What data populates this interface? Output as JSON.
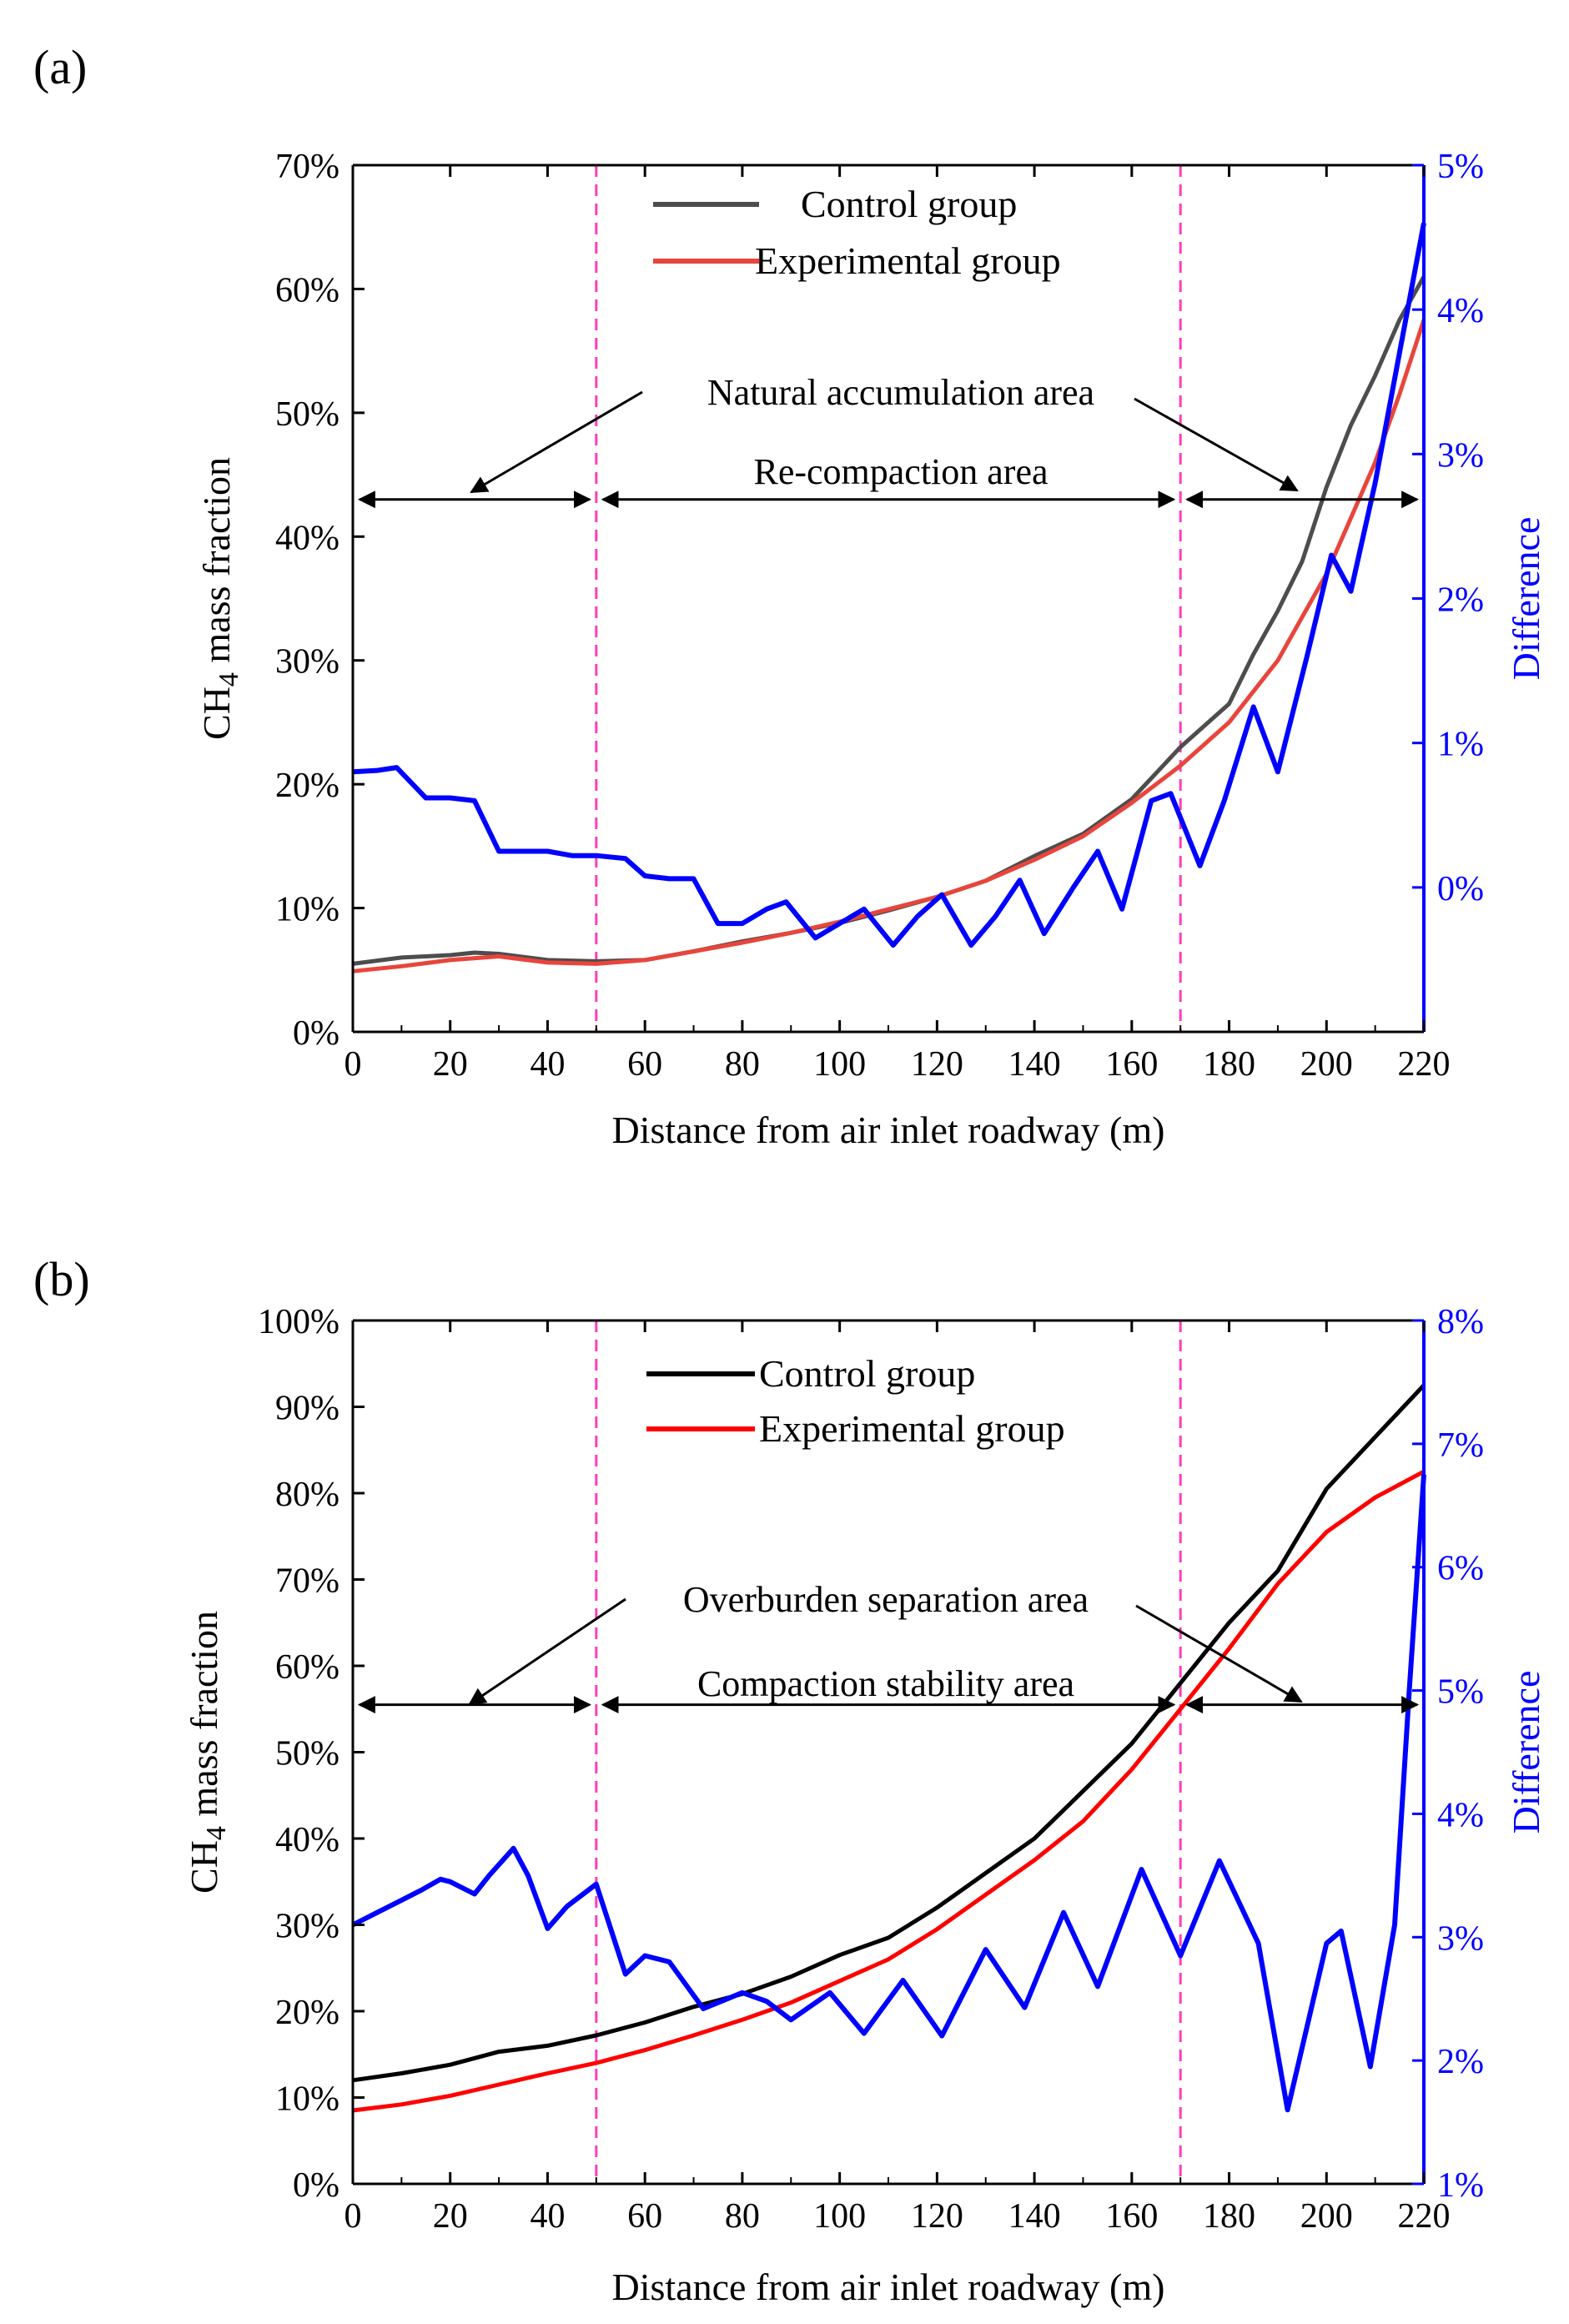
{
  "chart_data": [
    {
      "type": "line",
      "panel_label": "(a)",
      "xlabel": "Distance from air inlet roadway (m)",
      "ylabel_left_main": "CH",
      "ylabel_left_sub": "4",
      "ylabel_left_tail": " mass fraction",
      "ylabel_right": "Difference",
      "xlim": [
        0,
        220
      ],
      "ylim_left": [
        0,
        70
      ],
      "ylim_right": [
        -1,
        5
      ],
      "x_ticks": [
        0,
        20,
        40,
        60,
        80,
        100,
        120,
        140,
        160,
        180,
        200,
        220
      ],
      "x_tick_labels": [
        "0",
        "20",
        "40",
        "60",
        "80",
        "100",
        "120",
        "140",
        "160",
        "180",
        "200",
        "220"
      ],
      "y_left_ticks": [
        0,
        10,
        20,
        30,
        40,
        50,
        60,
        70
      ],
      "y_left_tick_labels": [
        "0%",
        "10%",
        "20%",
        "30%",
        "40%",
        "50%",
        "60%",
        "70%"
      ],
      "y_right_ticks": [
        0,
        1,
        2,
        3,
        4,
        5
      ],
      "y_right_tick_labels": [
        "0%",
        "1%",
        "2%",
        "3%",
        "4%",
        "5%"
      ],
      "vlines": [
        50,
        170
      ],
      "arrow_line_y": 43,
      "annotations": {
        "natural": "Natural accumulation area",
        "recompaction": "Re-compaction area"
      },
      "series": [
        {
          "name": "Control group",
          "axis": "left",
          "color": "#4d4d4d",
          "x": [
            0,
            10,
            20,
            25,
            30,
            40,
            50,
            60,
            70,
            80,
            90,
            100,
            110,
            120,
            130,
            140,
            150,
            160,
            170,
            180,
            185,
            190,
            195,
            200,
            205,
            210,
            215,
            220
          ],
          "values": [
            5.5,
            6.0,
            6.2,
            6.4,
            6.3,
            5.8,
            5.7,
            5.8,
            6.5,
            7.3,
            8.0,
            8.8,
            9.8,
            10.9,
            12.2,
            14.2,
            16.0,
            18.8,
            23.0,
            26.5,
            30.5,
            34.0,
            38.0,
            44.0,
            49.0,
            53.0,
            57.5,
            61.0
          ]
        },
        {
          "name": "Experimental group",
          "axis": "left",
          "color": "#e8453c",
          "x": [
            0,
            10,
            20,
            30,
            40,
            50,
            60,
            70,
            80,
            90,
            100,
            110,
            120,
            130,
            140,
            150,
            160,
            170,
            180,
            190,
            200,
            205,
            210,
            215,
            220
          ],
          "values": [
            4.9,
            5.3,
            5.8,
            6.1,
            5.6,
            5.5,
            5.8,
            6.5,
            7.2,
            8.0,
            8.9,
            9.9,
            10.9,
            12.2,
            13.9,
            15.8,
            18.5,
            21.5,
            25.0,
            30.0,
            37.0,
            41.5,
            46.0,
            51.5,
            57.5
          ]
        },
        {
          "name": "Difference",
          "axis": "right",
          "color": "#0000ff",
          "x": [
            0,
            5,
            9,
            15,
            20,
            25,
            30,
            35,
            40,
            45,
            50,
            56,
            60,
            65,
            70,
            75,
            80,
            85,
            89,
            95,
            100,
            105,
            111,
            116,
            121,
            127,
            132,
            137,
            142,
            148,
            153,
            158,
            164,
            168,
            174,
            179,
            185,
            190,
            196,
            201,
            205,
            210,
            215,
            220
          ],
          "values": [
            0.8,
            0.81,
            0.83,
            0.62,
            0.62,
            0.6,
            0.25,
            0.25,
            0.25,
            0.22,
            0.22,
            0.2,
            0.08,
            0.06,
            0.06,
            -0.25,
            -0.25,
            -0.15,
            -0.1,
            -0.35,
            -0.25,
            -0.15,
            -0.4,
            -0.2,
            -0.05,
            -0.4,
            -0.2,
            0.05,
            -0.32,
            0.0,
            0.25,
            -0.15,
            0.6,
            0.65,
            0.15,
            0.6,
            1.25,
            0.8,
            1.6,
            2.3,
            2.05,
            2.8,
            3.7,
            4.6
          ]
        }
      ]
    },
    {
      "type": "line",
      "panel_label": "(b)",
      "xlabel": "Distance from air inlet roadway (m)",
      "ylabel_left_main": "CH",
      "ylabel_left_sub": "4",
      "ylabel_left_tail": " mass fraction",
      "ylabel_right": "Difference",
      "xlim": [
        0,
        220
      ],
      "ylim_left": [
        0,
        100
      ],
      "ylim_right": [
        1,
        8
      ],
      "x_ticks": [
        0,
        20,
        40,
        60,
        80,
        100,
        120,
        140,
        160,
        180,
        200,
        220
      ],
      "x_tick_labels": [
        "0",
        "20",
        "40",
        "60",
        "80",
        "100",
        "120",
        "140",
        "160",
        "180",
        "200",
        "220"
      ],
      "y_left_ticks": [
        0,
        10,
        20,
        30,
        40,
        50,
        60,
        70,
        80,
        90,
        100
      ],
      "y_left_tick_labels": [
        "0%",
        "10%",
        "20%",
        "30%",
        "40%",
        "50%",
        "60%",
        "70%",
        "80%",
        "90%",
        "100%"
      ],
      "y_right_ticks": [
        1,
        2,
        3,
        4,
        5,
        6,
        7,
        8
      ],
      "y_right_tick_labels": [
        "1%",
        "2%",
        "3%",
        "4%",
        "5%",
        "6%",
        "7%",
        "8%"
      ],
      "vlines": [
        50,
        170
      ],
      "arrow_line_y": 55.5,
      "annotations": {
        "natural": "Overburden separation area",
        "recompaction": "Compaction stability area"
      },
      "series": [
        {
          "name": "Control group",
          "axis": "left",
          "color": "#000000",
          "x": [
            0,
            10,
            20,
            30,
            40,
            50,
            60,
            70,
            80,
            90,
            100,
            110,
            120,
            130,
            140,
            150,
            160,
            170,
            180,
            190,
            200,
            210,
            220
          ],
          "values": [
            12.0,
            12.8,
            13.8,
            15.3,
            16.0,
            17.2,
            18.7,
            20.5,
            22.0,
            24.0,
            26.5,
            28.5,
            32.0,
            36.0,
            40.0,
            45.5,
            51.0,
            58.0,
            65.0,
            71.0,
            80.5,
            86.5,
            92.5
          ]
        },
        {
          "name": "Experimental group",
          "axis": "left",
          "color": "#ff0000",
          "x": [
            0,
            10,
            20,
            30,
            40,
            50,
            60,
            70,
            80,
            90,
            100,
            110,
            120,
            130,
            140,
            150,
            160,
            170,
            180,
            190,
            200,
            210,
            220
          ],
          "values": [
            8.5,
            9.2,
            10.2,
            11.5,
            12.8,
            14.0,
            15.5,
            17.2,
            19.0,
            21.0,
            23.5,
            26.0,
            29.5,
            33.5,
            37.5,
            42.0,
            48.0,
            55.0,
            62.0,
            69.5,
            75.5,
            79.5,
            82.5
          ]
        },
        {
          "name": "Difference",
          "axis": "right",
          "color": "#0000ff",
          "x": [
            0,
            5,
            10,
            14,
            18,
            20,
            25,
            28,
            33,
            36,
            40,
            44,
            50,
            56,
            60,
            65,
            72,
            80,
            85,
            90,
            98,
            105,
            113,
            121,
            130,
            138,
            146,
            153,
            162,
            170,
            178,
            186,
            192,
            200,
            203,
            209,
            214,
            217,
            220
          ],
          "values": [
            3.1,
            3.2,
            3.3,
            3.38,
            3.47,
            3.45,
            3.35,
            3.5,
            3.72,
            3.5,
            3.07,
            3.25,
            3.43,
            2.7,
            2.85,
            2.8,
            2.42,
            2.55,
            2.48,
            2.33,
            2.55,
            2.22,
            2.65,
            2.2,
            2.9,
            2.43,
            3.2,
            2.6,
            3.55,
            2.85,
            3.62,
            2.95,
            1.6,
            2.95,
            3.05,
            1.95,
            3.1,
            5.0,
            6.75
          ]
        }
      ]
    }
  ]
}
